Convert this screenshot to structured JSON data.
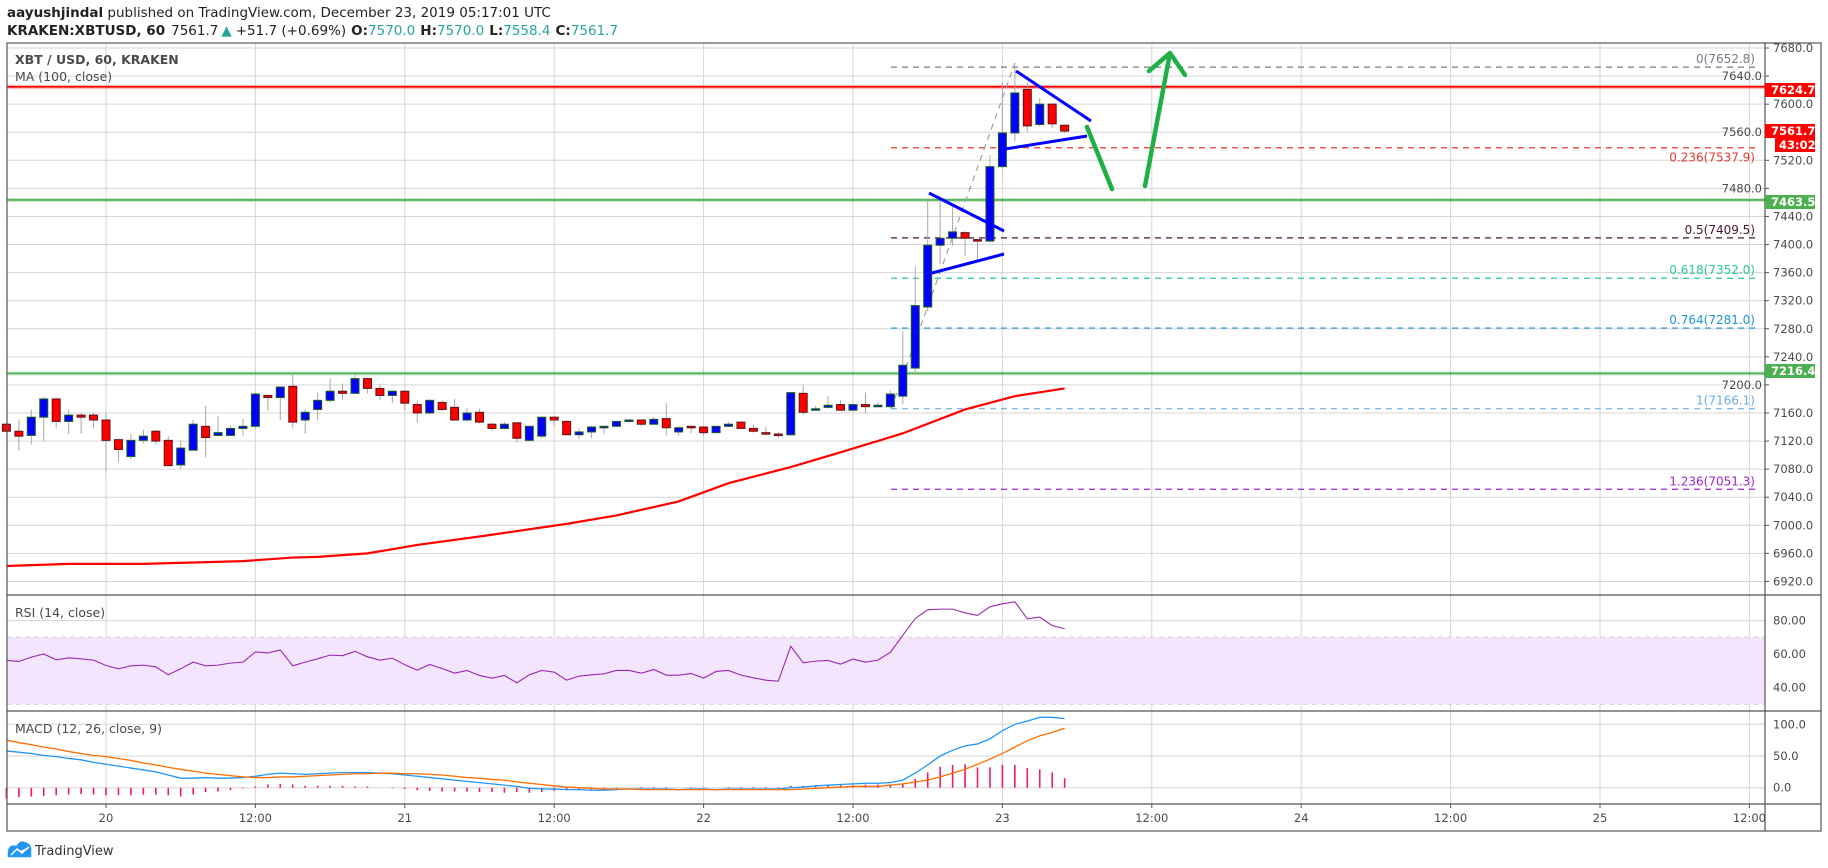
{
  "header": {
    "author": "aayushjindal",
    "published": " published on TradingView.com, December 23, 2019 05:17:01 UTC",
    "symbol": "KRAKEN:XBTUSD, 60",
    "last": "7561.7",
    "change": "+51.7 (+0.69%)",
    "o_label": "O:",
    "o": "7570.0",
    "h_label": "H:",
    "h": "7570.0",
    "l_label": "L:",
    "l": "7558.4",
    "c_label": "C:",
    "c": "7561.7"
  },
  "legend": {
    "title": "XBT / USD, 60, KRAKEN",
    "ma": "MA (100, close)",
    "rsi": "RSI (14, close)",
    "macd": "MACD (12, 26, close, 9)"
  },
  "colors": {
    "up": "#0000ff",
    "up_border": "#1b5e20",
    "down": "#ff0000",
    "down_border": "#5d1414",
    "ma": "#ff0000",
    "rsi": "#9c27b0",
    "rsi_band": "#f3e5fd",
    "macd": "#2196f3",
    "signal": "#ff6d00",
    "hist": "#e91e63",
    "resistance": "#ff0000",
    "support": "#4caf50",
    "trendline": "#0000ff",
    "arrow": "#1eb045"
  },
  "price_axis": {
    "ticks": [
      "7680.0",
      "7640.0",
      "7600.0",
      "7560.0",
      "7520.0",
      "7480.0",
      "7440.0",
      "7400.0",
      "7360.0",
      "7320.0",
      "7280.0",
      "7240.0",
      "7200.0",
      "7160.0",
      "7120.0",
      "7080.0",
      "7040.0",
      "7000.0",
      "6960.0",
      "6920.0"
    ],
    "badges": [
      {
        "label": "7624.7",
        "kind": "resistance"
      },
      {
        "label": "7561.7",
        "kind": "last"
      },
      {
        "label": "7463.5",
        "kind": "support"
      },
      {
        "label": "7216.4",
        "kind": "support"
      }
    ],
    "countdown": "43:02"
  },
  "rsi_axis": {
    "ticks": [
      "80.00",
      "60.00",
      "40.00"
    ],
    "upper": 70,
    "lower": 30
  },
  "macd_axis": {
    "ticks": [
      "100.0",
      "50.0",
      "0.0"
    ]
  },
  "time_axis": {
    "labels": [
      "20",
      "12:00",
      "21",
      "12:00",
      "22",
      "12:00",
      "23",
      "12:00",
      "24",
      "12:00",
      "25",
      "12:00"
    ],
    "hours_between_labels": 12
  },
  "horizontal_levels": [
    {
      "price": 7624.7,
      "kind": "resistance"
    },
    {
      "price": 7463.5,
      "kind": "support"
    },
    {
      "price": 7216.4,
      "kind": "support"
    }
  ],
  "fib_levels": [
    {
      "label": "0(7652.8)",
      "price": 7652.8,
      "color": "#787b86"
    },
    {
      "label": "0.236(7537.9)",
      "price": 7537.9,
      "color": "#e53935"
    },
    {
      "label": "0.5(7409.5)",
      "price": 7409.5,
      "color": "#4a1432"
    },
    {
      "label": "0.618(7352.0)",
      "price": 7352.0,
      "color": "#2bc99a"
    },
    {
      "label": "0.764(7281.0)",
      "price": 7281.0,
      "color": "#2196d6"
    },
    {
      "label": "1(7166.1)",
      "price": 7166.1,
      "color": "#6aaee0"
    },
    {
      "label": "1.236(7051.3)",
      "price": 7051.3,
      "color": "#9c27d0"
    }
  ],
  "chart_data": {
    "type": "candlestick",
    "title": "XBT / USD, 60, KRAKEN",
    "x_unit": "hours since Dec 20 00:00 UTC",
    "x_start": -8,
    "ylim": [
      6900,
      7695
    ],
    "ohlc": [
      [
        7144,
        7146,
        7132,
        7134
      ],
      [
        7134,
        7150,
        7106,
        7127
      ],
      [
        7128,
        7165,
        7115,
        7154
      ],
      [
        7154,
        7183,
        7120,
        7180
      ],
      [
        7180,
        7182,
        7138,
        7148
      ],
      [
        7148,
        7165,
        7130,
        7157
      ],
      [
        7157,
        7160,
        7130,
        7154
      ],
      [
        7157,
        7160,
        7138,
        7150
      ],
      [
        7150,
        7160,
        7075,
        7121
      ],
      [
        7122,
        7124,
        7090,
        7108
      ],
      [
        7098,
        7130,
        7094,
        7121
      ],
      [
        7121,
        7136,
        7117,
        7127
      ],
      [
        7134,
        7136,
        7115,
        7120
      ],
      [
        7121,
        7127,
        7085,
        7085
      ],
      [
        7086,
        7121,
        7080,
        7110
      ],
      [
        7107,
        7150,
        7107,
        7144
      ],
      [
        7141,
        7170,
        7097,
        7125
      ],
      [
        7128,
        7156,
        7127,
        7132
      ],
      [
        7128,
        7142,
        7128,
        7138
      ],
      [
        7138,
        7152,
        7128,
        7141
      ],
      [
        7141,
        7189,
        7138,
        7187
      ],
      [
        7185,
        7186,
        7163,
        7182
      ],
      [
        7182,
        7197,
        7150,
        7197
      ],
      [
        7198,
        7218,
        7138,
        7147
      ],
      [
        7150,
        7165,
        7130,
        7161
      ],
      [
        7165,
        7189,
        7150,
        7178
      ],
      [
        7178,
        7209,
        7175,
        7191
      ],
      [
        7191,
        7202,
        7179,
        7188
      ],
      [
        7188,
        7214,
        7188,
        7209
      ],
      [
        7209,
        7210,
        7188,
        7195
      ],
      [
        7195,
        7201,
        7178,
        7185
      ],
      [
        7185,
        7192,
        7174,
        7191
      ],
      [
        7191,
        7192,
        7164,
        7174
      ],
      [
        7172,
        7177,
        7146,
        7160
      ],
      [
        7160,
        7180,
        7158,
        7178
      ],
      [
        7175,
        7178,
        7163,
        7165
      ],
      [
        7168,
        7180,
        7149,
        7150
      ],
      [
        7150,
        7167,
        7148,
        7160
      ],
      [
        7161,
        7166,
        7145,
        7147
      ],
      [
        7144,
        7146,
        7134,
        7138
      ],
      [
        7138,
        7147,
        7137,
        7144
      ],
      [
        7146,
        7147,
        7118,
        7124
      ],
      [
        7121,
        7141,
        7120,
        7141
      ],
      [
        7127,
        7154,
        7124,
        7154
      ],
      [
        7154,
        7155,
        7142,
        7150
      ],
      [
        7148,
        7150,
        7129,
        7129
      ],
      [
        7129,
        7138,
        7123,
        7133
      ],
      [
        7133,
        7142,
        7124,
        7140
      ],
      [
        7140,
        7141,
        7130,
        7141
      ],
      [
        7141,
        7149,
        7140,
        7148
      ],
      [
        7148,
        7150,
        7147,
        7150
      ],
      [
        7150,
        7151,
        7141,
        7144
      ],
      [
        7144,
        7154,
        7143,
        7151
      ],
      [
        7152,
        7174,
        7128,
        7139
      ],
      [
        7133,
        7141,
        7128,
        7139
      ],
      [
        7141,
        7142,
        7131,
        7140
      ],
      [
        7140,
        7141,
        7128,
        7132
      ],
      [
        7132,
        7141,
        7131,
        7141
      ],
      [
        7141,
        7147,
        7140,
        7144
      ],
      [
        7147,
        7148,
        7137,
        7138
      ],
      [
        7138,
        7143,
        7132,
        7134
      ],
      [
        7132,
        7140,
        7128,
        7130
      ],
      [
        7130,
        7133,
        7124,
        7129
      ],
      [
        7129,
        7190,
        7128,
        7189
      ],
      [
        7188,
        7200,
        7157,
        7161
      ],
      [
        7165,
        7170,
        7164,
        7166
      ],
      [
        7168,
        7184,
        7166,
        7171
      ],
      [
        7172,
        7178,
        7163,
        7164
      ],
      [
        7164,
        7173,
        7163,
        7172
      ],
      [
        7172,
        7189,
        7159,
        7169
      ],
      [
        7169,
        7175,
        7168,
        7171
      ],
      [
        7169,
        7192,
        7168,
        7187
      ],
      [
        7184,
        7276,
        7173,
        7228
      ],
      [
        7224,
        7368,
        7215,
        7313
      ],
      [
        7311,
        7465,
        7305,
        7399
      ],
      [
        7399,
        7463,
        7372,
        7409
      ],
      [
        7409,
        7454,
        7398,
        7418
      ],
      [
        7417,
        7419,
        7384,
        7409
      ],
      [
        7407,
        7409,
        7380,
        7405
      ],
      [
        7405,
        7527,
        7403,
        7511
      ],
      [
        7511,
        7631,
        7508,
        7559
      ],
      [
        7559,
        7653,
        7547,
        7616
      ],
      [
        7621,
        7631,
        7560,
        7569
      ],
      [
        7571,
        7609,
        7568,
        7600
      ],
      [
        7600,
        7601,
        7566,
        7572
      ],
      [
        7570,
        7570,
        7558.4,
        7561.7
      ]
    ],
    "ma100": [
      [
        -8,
        6942
      ],
      [
        -3,
        6945
      ],
      [
        3,
        6945
      ],
      [
        7,
        6947
      ],
      [
        11,
        6949
      ],
      [
        15,
        6954
      ],
      [
        17,
        6955
      ],
      [
        21,
        6960
      ],
      [
        25,
        6972
      ],
      [
        30,
        6984
      ],
      [
        37,
        7002
      ],
      [
        41,
        7014
      ],
      [
        46,
        7034
      ],
      [
        50,
        7060
      ],
      [
        55,
        7083
      ],
      [
        59,
        7104
      ],
      [
        64,
        7131
      ],
      [
        69,
        7165
      ],
      [
        73,
        7184
      ],
      [
        77,
        7195
      ]
    ],
    "rsi": [
      56.1,
      55.5,
      58.1,
      60,
      56.5,
      57.7,
      57.1,
      56.3,
      53.1,
      51.1,
      52.9,
      53.3,
      52.3,
      47.5,
      51.1,
      55.1,
      52.9,
      53.3,
      54.5,
      55.1,
      61.2,
      60.6,
      62.4,
      52.9,
      55.1,
      57.1,
      59.3,
      59,
      61.6,
      58.3,
      56.3,
      57.5,
      53.5,
      50.3,
      53.7,
      51.3,
      48.5,
      50.1,
      47.1,
      45.5,
      47.1,
      42.7,
      47.5,
      50.1,
      49.1,
      44.3,
      46.7,
      47.5,
      48.1,
      50.1,
      50.1,
      48.5,
      50.7,
      47.3,
      47.3,
      48.3,
      45.5,
      49.5,
      50.1,
      47.3,
      45.7,
      44.3,
      43.7,
      64.6,
      54.7,
      55.7,
      56.1,
      53.9,
      56.9,
      55.1,
      56.3,
      61,
      71.2,
      81.3,
      86.5,
      86.9,
      86.9,
      84.7,
      83.1,
      88.3,
      90.1,
      91.3,
      81.1,
      82.1,
      77,
      75.2
    ],
    "macd": [
      58,
      56,
      54,
      51,
      49,
      46,
      44,
      40,
      37,
      34,
      31,
      28,
      25,
      20,
      15,
      15,
      16,
      15,
      15,
      16,
      18,
      21,
      23,
      22,
      21,
      22,
      23,
      24,
      24,
      24,
      23,
      22,
      20,
      18,
      16,
      14,
      12,
      10,
      8,
      6,
      4,
      2,
      -1,
      -2,
      -2,
      -3,
      -3,
      -4,
      -4,
      -3,
      -2,
      -2,
      -2,
      -2,
      -3,
      -2,
      -2,
      -3,
      -2,
      -2,
      -2,
      -2,
      -2,
      0,
      1,
      3,
      4,
      5,
      6,
      7,
      7,
      8,
      12,
      23,
      36,
      50,
      59,
      66,
      69,
      77,
      90,
      100,
      105,
      111,
      111,
      109
    ],
    "signal": [
      75,
      71,
      68,
      64,
      61,
      57,
      54,
      51,
      49,
      46,
      43,
      39,
      36,
      32,
      29,
      26,
      23,
      21,
      19,
      17,
      16,
      16,
      17,
      17,
      18,
      19,
      20,
      21,
      22,
      22,
      23,
      23,
      22,
      22,
      21,
      20,
      18,
      16,
      15,
      13,
      12,
      9,
      7,
      5,
      3,
      1,
      0,
      -1,
      -2,
      -2,
      -2,
      -3,
      -3,
      -3,
      -3,
      -3,
      -3,
      -3,
      -3,
      -3,
      -3,
      -3,
      -3,
      -3,
      -2,
      -1,
      0,
      1,
      2,
      2,
      2,
      4,
      6,
      9,
      12,
      17,
      23,
      29,
      37,
      45,
      54,
      64,
      74,
      82,
      87,
      94
    ]
  },
  "footer": {
    "brand": "TradingView"
  }
}
